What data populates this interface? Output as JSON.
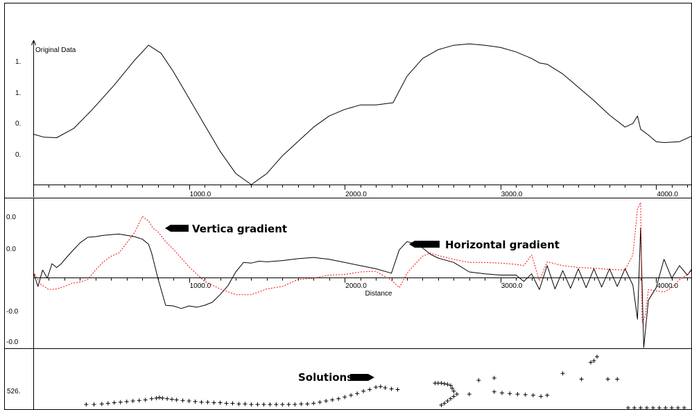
{
  "chart_data": [
    {
      "type": "line",
      "title": "Original Data",
      "xlim": [
        0,
        4230
      ],
      "x_ticks": [
        {
          "value": 1000,
          "label": "1000.0"
        },
        {
          "value": 2000,
          "label": "2000.0"
        },
        {
          "value": 3000,
          "label": "3000.0"
        },
        {
          "value": 4000,
          "label": "4000.0"
        }
      ],
      "y_tick_labels": [
        "1.",
        "1.",
        "0.",
        "0."
      ],
      "series": [
        {
          "color": "#000000",
          "x": [
            0,
            70,
            150,
            260,
            380,
            520,
            650,
            740,
            820,
            900,
            1000,
            1100,
            1200,
            1300,
            1400,
            1500,
            1600,
            1800,
            1900,
            2000,
            2100,
            2200,
            2310,
            2400,
            2500,
            2600,
            2700,
            2800,
            2900,
            3000,
            3100,
            3200,
            3250,
            3300,
            3400,
            3500,
            3600,
            3700,
            3800,
            3850,
            3880,
            3900,
            3950,
            4000,
            4050,
            4150,
            4230
          ],
          "y": [
            1.9,
            1.2,
            1.1,
            3.2,
            7.5,
            13,
            18.6,
            22,
            20.2,
            16,
            10,
            4,
            -2,
            -7,
            -9.5,
            -7,
            -3,
            3.5,
            6,
            7.5,
            8.5,
            8.5,
            9,
            15,
            19,
            21,
            22,
            22.3,
            22,
            21.5,
            20.5,
            19,
            18,
            17.7,
            15.5,
            12.5,
            9.5,
            6.2,
            3.5,
            4.3,
            6,
            3,
            1.7,
            0.2,
            0,
            0.2,
            1.5
          ]
        }
      ]
    },
    {
      "type": "line",
      "xlabel": "Distance",
      "xlim": [
        0,
        4230
      ],
      "x_ticks": [
        {
          "value": 1000,
          "label": "1000.0"
        },
        {
          "value": 2000,
          "label": "2000.0"
        },
        {
          "value": 3000,
          "label": "3000.0"
        },
        {
          "value": 4000,
          "label": "4000.0"
        }
      ],
      "y_tick_labels": [
        "0.0",
        "0.0",
        "-0.0",
        "-0.0"
      ],
      "series": [
        {
          "name": "Horizontal gradient",
          "color": "#000000",
          "style": "solid",
          "x": [
            0,
            30,
            60,
            90,
            120,
            150,
            180,
            210,
            250,
            300,
            350,
            400,
            450,
            500,
            550,
            600,
            650,
            700,
            740,
            760,
            800,
            850,
            900,
            950,
            1000,
            1050,
            1100,
            1150,
            1200,
            1250,
            1300,
            1350,
            1400,
            1450,
            1500,
            1600,
            1700,
            1800,
            1900,
            2000,
            2100,
            2200,
            2300,
            2350,
            2400,
            2450,
            2500,
            2550,
            2600,
            2700,
            2800,
            2900,
            3000,
            3100,
            3150,
            3200,
            3250,
            3300,
            3350,
            3400,
            3450,
            3500,
            3550,
            3600,
            3650,
            3700,
            3750,
            3800,
            3850,
            3880,
            3900,
            3920,
            3950,
            4000,
            4050,
            4100,
            4150,
            4200,
            4230
          ],
          "y": [
            0,
            -2.3,
            0.3,
            -1,
            1.3,
            0.7,
            1.3,
            2.2,
            3.3,
            4.6,
            5.5,
            5.6,
            5.8,
            5.9,
            6,
            5.8,
            5.6,
            5.2,
            4.4,
            3,
            -1,
            -5.3,
            -5.4,
            -5.8,
            -5.4,
            -5.6,
            -5.3,
            -4.8,
            -3.6,
            -2.2,
            0,
            1.5,
            1.4,
            1.7,
            1.6,
            1.8,
            2.1,
            2.3,
            2,
            1.5,
            1,
            0.5,
            -0.2,
            3.5,
            4.8,
            4.5,
            3.8,
            2.8,
            2.2,
            1.5,
            0,
            -0.3,
            -0.5,
            -0.5,
            -1.5,
            -0.3,
            -2.8,
            1,
            -2.7,
            0.2,
            -2.6,
            0.5,
            -2.5,
            0.5,
            -2.4,
            0.5,
            -2.3,
            0.5,
            -2.1,
            -7.5,
            7,
            -12,
            -4.5,
            -2.5,
            2,
            -1,
            1,
            -0.5,
            0.5
          ]
        },
        {
          "name": "Vertica gradient",
          "color": "#ff0000",
          "style": "dashed",
          "x": [
            0,
            50,
            100,
            150,
            200,
            250,
            300,
            350,
            400,
            450,
            500,
            550,
            600,
            650,
            700,
            740,
            770,
            800,
            850,
            900,
            950,
            1000,
            1100,
            1200,
            1300,
            1400,
            1500,
            1600,
            1700,
            1800,
            1900,
            2000,
            2100,
            2200,
            2300,
            2350,
            2400,
            2450,
            2500,
            2550,
            2600,
            2700,
            2800,
            2900,
            3000,
            3100,
            3150,
            3200,
            3250,
            3300,
            3400,
            3500,
            3600,
            3700,
            3800,
            3850,
            3880,
            3900,
            3910,
            3930,
            3950,
            4000,
            4050,
            4100,
            4150,
            4200,
            4230
          ],
          "y": [
            0,
            -2,
            -2.8,
            -2.7,
            -2.3,
            -1.8,
            -1.6,
            -1.2,
            0.3,
            1.6,
            2.5,
            3,
            4.6,
            6.2,
            8.8,
            8.1,
            6.9,
            6.4,
            4.8,
            3.6,
            2.2,
            0.8,
            -1.5,
            -2.7,
            -3.6,
            -3.6,
            -2.7,
            -2.3,
            -1.2,
            -1,
            -0.5,
            -0.4,
            0,
            0.1,
            -1.3,
            -2.5,
            -0.2,
            1.2,
            2.5,
            3,
            2.6,
            2,
            1.5,
            1.5,
            1.4,
            1.2,
            1,
            2.7,
            -1.4,
            1.6,
            1,
            0.7,
            0.6,
            0.4,
            0.3,
            2.7,
            10,
            11,
            -8,
            -7,
            -2.8,
            -3,
            -3.2,
            -2.5,
            -1.2,
            -0.4,
            0.2
          ]
        }
      ]
    },
    {
      "type": "scatter",
      "title": "",
      "xlim": [
        0,
        4230
      ],
      "y_tick_labels": [
        "526."
      ],
      "series": [
        {
          "name": "Solutions",
          "color": "#000000",
          "marker": "+",
          "points": [
            [
              340,
              0.6
            ],
            [
              390,
              0.6
            ],
            [
              440,
              0.7
            ],
            [
              480,
              0.8
            ],
            [
              520,
              0.9
            ],
            [
              560,
              1
            ],
            [
              600,
              1.1
            ],
            [
              640,
              1.2
            ],
            [
              680,
              1.3
            ],
            [
              720,
              1.4
            ],
            [
              760,
              1.6
            ],
            [
              790,
              1.7
            ],
            [
              810,
              1.8
            ],
            [
              830,
              1.7
            ],
            [
              860,
              1.6
            ],
            [
              890,
              1.5
            ],
            [
              920,
              1.4
            ],
            [
              960,
              1.3
            ],
            [
              1000,
              1.2
            ],
            [
              1040,
              1.1
            ],
            [
              1080,
              1
            ],
            [
              1120,
              1
            ],
            [
              1160,
              0.9
            ],
            [
              1200,
              0.9
            ],
            [
              1240,
              0.8
            ],
            [
              1280,
              0.8
            ],
            [
              1320,
              0.7
            ],
            [
              1360,
              0.7
            ],
            [
              1400,
              0.6
            ],
            [
              1440,
              0.6
            ],
            [
              1480,
              0.6
            ],
            [
              1520,
              0.6
            ],
            [
              1560,
              0.6
            ],
            [
              1600,
              0.6
            ],
            [
              1640,
              0.6
            ],
            [
              1680,
              0.6
            ],
            [
              1720,
              0.7
            ],
            [
              1760,
              0.7
            ],
            [
              1800,
              0.8
            ],
            [
              1840,
              1
            ],
            [
              1880,
              1.2
            ],
            [
              1920,
              1.4
            ],
            [
              1960,
              1.6
            ],
            [
              2000,
              1.9
            ],
            [
              2040,
              2.2
            ],
            [
              2080,
              2.5
            ],
            [
              2120,
              2.9
            ],
            [
              2160,
              3.2
            ],
            [
              2200,
              3.6
            ],
            [
              2230,
              3.7
            ],
            [
              2260,
              3.5
            ],
            [
              2300,
              3.3
            ],
            [
              2340,
              3.2
            ],
            [
              2620,
              0.5
            ],
            [
              2640,
              0.8
            ],
            [
              2660,
              1.2
            ],
            [
              2680,
              1.6
            ],
            [
              2700,
              2
            ],
            [
              2720,
              2.4
            ],
            [
              2700,
              2.9
            ],
            [
              2690,
              3.4
            ],
            [
              2680,
              3.9
            ],
            [
              2660,
              4.1
            ],
            [
              2640,
              4.2
            ],
            [
              2620,
              4.3
            ],
            [
              2600,
              4.3
            ],
            [
              2580,
              4.3
            ],
            [
              2800,
              2.4
            ],
            [
              2860,
              4.8
            ],
            [
              2960,
              5.2
            ],
            [
              2960,
              2.8
            ],
            [
              3010,
              2.6
            ],
            [
              3060,
              2.5
            ],
            [
              3110,
              2.4
            ],
            [
              3160,
              2.3
            ],
            [
              3210,
              2.2
            ],
            [
              3260,
              2
            ],
            [
              3300,
              2.2
            ],
            [
              3400,
              6
            ],
            [
              3520,
              5
            ],
            [
              3580,
              7.9
            ],
            [
              3600,
              8.2
            ],
            [
              3620,
              8.9
            ],
            [
              3690,
              5
            ],
            [
              3750,
              5
            ],
            [
              3820,
              0
            ],
            [
              3860,
              0
            ],
            [
              3900,
              0
            ],
            [
              3940,
              0
            ],
            [
              3980,
              0
            ],
            [
              4020,
              0
            ],
            [
              4060,
              0
            ],
            [
              4100,
              0
            ],
            [
              4140,
              0
            ],
            [
              4180,
              0
            ]
          ]
        }
      ]
    }
  ]
}
